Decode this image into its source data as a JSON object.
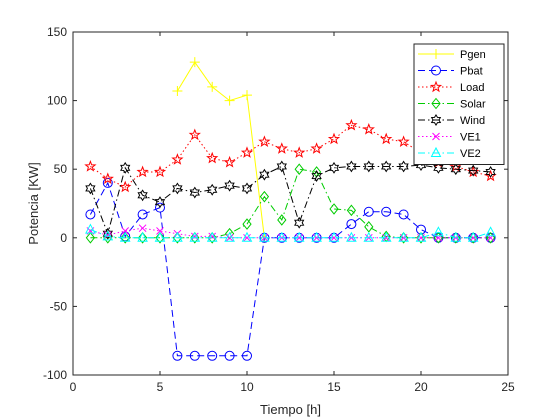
{
  "chart_data": {
    "type": "line",
    "xlabel": "Tiempo [h]",
    "ylabel": "Potencia [KW]",
    "xlim": [
      0,
      25
    ],
    "ylim": [
      -100,
      150
    ],
    "xticks": [
      0,
      5,
      10,
      15,
      20,
      25
    ],
    "yticks": [
      -100,
      -50,
      0,
      50,
      100,
      150
    ],
    "grid": false,
    "legend_position": "top-right",
    "x": [
      1,
      2,
      3,
      4,
      5,
      6,
      7,
      8,
      9,
      10,
      11,
      12,
      13,
      14,
      15,
      16,
      17,
      18,
      19,
      20,
      21,
      22,
      23,
      24
    ],
    "series": [
      {
        "name": "Pgen",
        "color": "#FFFF00",
        "line": "solid",
        "marker": "plus",
        "points": [
          [
            6,
            107
          ],
          [
            7,
            128
          ],
          [
            8,
            110
          ],
          [
            9,
            100
          ],
          [
            10,
            104
          ],
          [
            11,
            0
          ]
        ]
      },
      {
        "name": "Pbat",
        "color": "#0000FF",
        "line": "dashed",
        "marker": "circle",
        "values": [
          17,
          40,
          1,
          17,
          22,
          -86,
          -86,
          -86,
          -86,
          -86,
          0,
          0,
          0,
          0,
          0,
          10,
          19,
          19,
          17,
          6,
          0,
          0,
          0,
          0
        ]
      },
      {
        "name": "Load",
        "color": "#FF0000",
        "line": "dotted",
        "marker": "pentagram",
        "values": [
          52,
          43,
          37,
          48,
          48,
          57,
          75,
          58,
          55,
          62,
          70,
          65,
          62,
          65,
          72,
          82,
          79,
          72,
          70,
          62,
          55,
          52,
          48,
          45
        ]
      },
      {
        "name": "Solar",
        "color": "#00CC00",
        "line": "dashdot",
        "marker": "diamond",
        "values": [
          0,
          0,
          0,
          0,
          0,
          0,
          0,
          0,
          3,
          10,
          30,
          13,
          50,
          48,
          21,
          20,
          8,
          1,
          0,
          0,
          0,
          0,
          0,
          0
        ]
      },
      {
        "name": "Wind",
        "color": "#000000",
        "line": "dashdot",
        "marker": "hexagram",
        "values": [
          36,
          3,
          51,
          31,
          26,
          36,
          33,
          35,
          38,
          36,
          46,
          52,
          11,
          45,
          51,
          52,
          52,
          52,
          52,
          53,
          51,
          50,
          49,
          48
        ]
      },
      {
        "name": "VE1",
        "color": "#FF00FF",
        "line": "dotted",
        "marker": "x",
        "values": [
          5,
          2,
          5,
          7,
          5,
          3,
          1,
          1,
          0,
          0,
          0,
          0,
          0,
          0,
          0,
          0,
          0,
          0,
          0,
          0,
          0,
          0,
          0,
          0
        ]
      },
      {
        "name": "VE2",
        "color": "#00FFFF",
        "line": "dashdot",
        "marker": "triangle",
        "values": [
          6,
          1,
          0,
          0,
          0,
          0,
          0,
          0,
          0,
          0,
          0,
          0,
          0,
          0,
          0,
          0,
          0,
          0,
          0,
          0,
          4,
          0,
          0,
          4
        ]
      }
    ]
  }
}
